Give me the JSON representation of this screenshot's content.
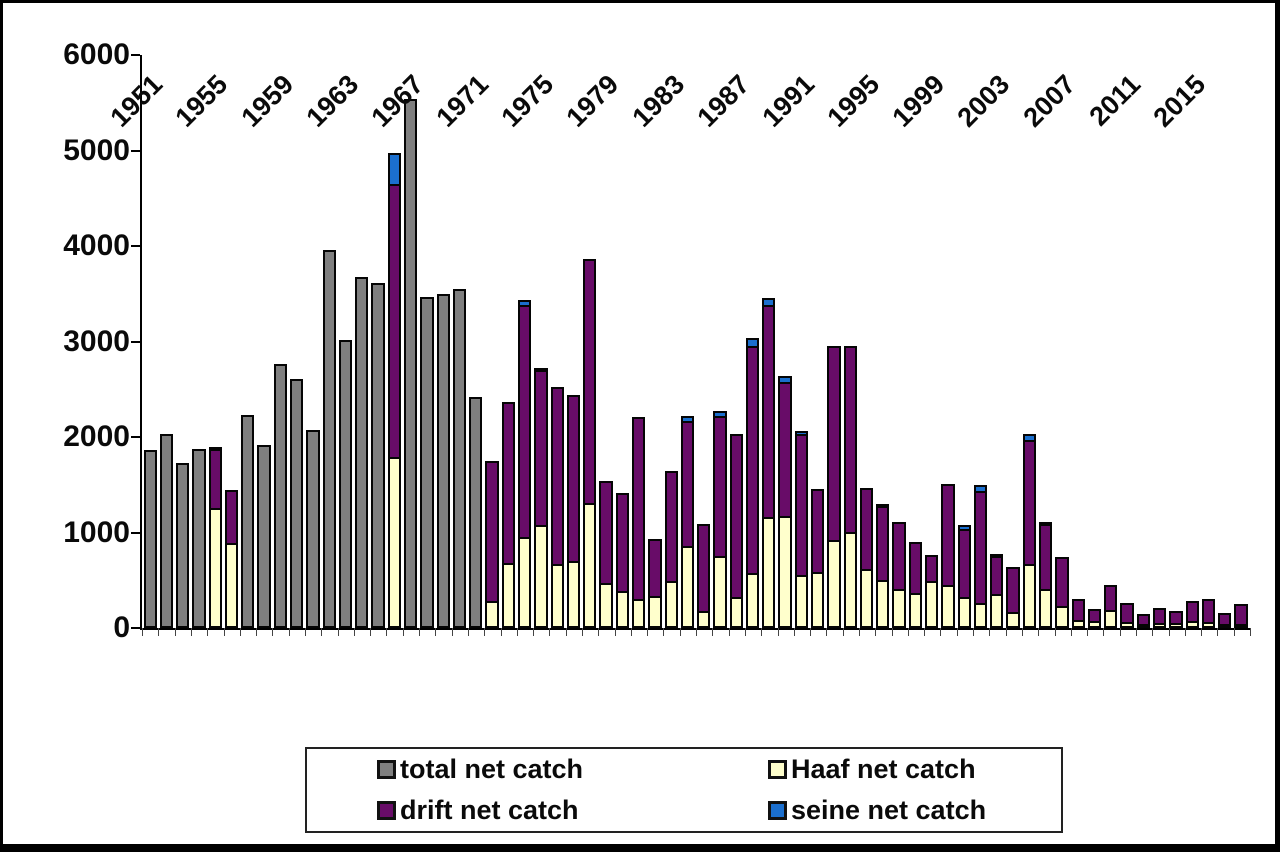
{
  "colors": {
    "total": "#7F7F7F",
    "haaf": "#FFFFCC",
    "drift": "#680C68",
    "seine": "#1B6FCE",
    "axis": "#000000",
    "background": "#FFFFFF"
  },
  "y_axis": {
    "ticks": [
      "0",
      "1000",
      "2000",
      "3000",
      "4000",
      "5000",
      "6000"
    ],
    "max": 6000
  },
  "x_axis": {
    "labels": [
      "1951",
      "1955",
      "1959",
      "1963",
      "1967",
      "1971",
      "1975",
      "1979",
      "1983",
      "1987",
      "1991",
      "1995",
      "1999",
      "2003",
      "2007",
      "2011",
      "2015"
    ],
    "label_interval": 4
  },
  "legend": {
    "items": [
      {
        "label": "total net catch",
        "color_key": "total"
      },
      {
        "label": "Haaf net catch",
        "color_key": "haaf"
      },
      {
        "label": "drift net catch",
        "color_key": "drift"
      },
      {
        "label": "seine net catch",
        "color_key": "seine"
      }
    ]
  },
  "chart_data": {
    "type": "bar",
    "stacked": true,
    "title": "",
    "xlabel": "",
    "ylabel": "",
    "ylim": [
      0,
      6000
    ],
    "grid": false,
    "legend_position": "bottom",
    "x_start": 1951,
    "x_end": 2018,
    "series": [
      {
        "name": "total net catch",
        "color_key": "total",
        "values": [
          1860,
          2030,
          1730,
          1880,
          0,
          0,
          2230,
          1920,
          2770,
          2610,
          2070,
          3960,
          3020,
          3680,
          3610,
          0,
          5540,
          3470,
          3500,
          3550,
          2420,
          0,
          0,
          0,
          0,
          0,
          0,
          0,
          0,
          0,
          0,
          0,
          0,
          0,
          0,
          0,
          0,
          0,
          0,
          0,
          0,
          0,
          0,
          0,
          0,
          0,
          0,
          0,
          0,
          0,
          0,
          0,
          0,
          0,
          0,
          0,
          0,
          0,
          0,
          0,
          0,
          0,
          0,
          0,
          0,
          0,
          0,
          0
        ]
      },
      {
        "name": "Haaf net catch",
        "color_key": "haaf",
        "values": [
          0,
          0,
          0,
          0,
          1260,
          890,
          0,
          0,
          0,
          0,
          0,
          0,
          0,
          0,
          0,
          1790,
          0,
          0,
          0,
          0,
          0,
          280,
          680,
          950,
          1080,
          670,
          700,
          1310,
          470,
          390,
          300,
          340,
          490,
          860,
          180,
          750,
          320,
          580,
          1160,
          1170,
          560,
          590,
          920,
          1010,
          620,
          500,
          410,
          370,
          490,
          450,
          320,
          260,
          360,
          170,
          670,
          410,
          230,
          80,
          70,
          190,
          60,
          40,
          50,
          50,
          70,
          60,
          30,
          40
        ]
      },
      {
        "name": "drift net catch",
        "color_key": "drift",
        "values": [
          0,
          0,
          0,
          0,
          635,
          580,
          0,
          0,
          0,
          0,
          0,
          0,
          0,
          0,
          0,
          2880,
          0,
          0,
          0,
          0,
          0,
          1490,
          1710,
          2450,
          1645,
          1870,
          1760,
          2580,
          1090,
          1050,
          1930,
          610,
          1180,
          1330,
          930,
          1490,
          1730,
          2395,
          2245,
          1425,
          1490,
          890,
          2050,
          1960,
          870,
          795,
          720,
          550,
          300,
          1080,
          735,
          1200,
          415,
          490,
          1325,
          705,
          530,
          250,
          150,
          280,
          220,
          130,
          180,
          150,
          230,
          270,
          140,
          230
        ]
      },
      {
        "name": "seine net catch",
        "color_key": "seine",
        "values": [
          0,
          0,
          0,
          0,
          45,
          0,
          0,
          0,
          0,
          0,
          0,
          0,
          0,
          0,
          0,
          350,
          0,
          0,
          0,
          0,
          0,
          0,
          0,
          80,
          45,
          0,
          0,
          0,
          0,
          0,
          0,
          0,
          0,
          70,
          0,
          70,
          0,
          105,
          95,
          85,
          50,
          0,
          0,
          0,
          0,
          45,
          0,
          0,
          0,
          0,
          65,
          80,
          35,
          0,
          75,
          30,
          0,
          0,
          0,
          0,
          0,
          0,
          0,
          0,
          0,
          0,
          0,
          0
        ]
      }
    ]
  }
}
